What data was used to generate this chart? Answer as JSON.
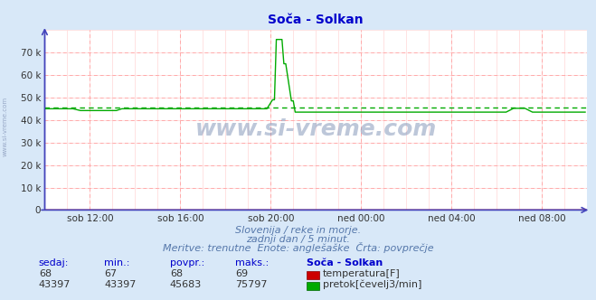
{
  "title": "Soča - Solkan",
  "bg_color": "#d8e8f8",
  "plot_bg_color": "#ffffff",
  "grid_color_major": "#ffaaaa",
  "grid_color_minor": "#ffdddd",
  "xlim": [
    0,
    288
  ],
  "ylim": [
    0,
    80000
  ],
  "ytick_positions": [
    0,
    10000,
    20000,
    30000,
    40000,
    50000,
    60000,
    70000
  ],
  "ytick_labels": [
    "0",
    "10 k",
    "20 k",
    "30 k",
    "40 k",
    "50 k",
    "60 k",
    "70 k"
  ],
  "xtick_positions": [
    24,
    72,
    120,
    168,
    216,
    264
  ],
  "xtick_labels": [
    "sob 12:00",
    "sob 16:00",
    "sob 20:00",
    "ned 00:00",
    "ned 04:00",
    "ned 08:00"
  ],
  "flow_color": "#00aa00",
  "temp_color": "#cc0000",
  "avg_flow": 45683,
  "watermark_text": "www.si-vreme.com",
  "left_text": "www.si-vreme.com",
  "subtitle1": "Slovenija / reke in morje.",
  "subtitle2": "zadnji dan / 5 minut.",
  "subtitle3": "Meritve: trenutne  Enote: anglešaške  Črta: povprečje",
  "table_headers": [
    "sedaj:",
    "min.:",
    "povpr.:",
    "maks.:",
    "Soča - Solkan"
  ],
  "table_row1": [
    "68",
    "67",
    "68",
    "69"
  ],
  "table_row2": [
    "43397",
    "43397",
    "45683",
    "75797"
  ],
  "row1_label": "temperatura[F]",
  "row2_label": "pretok[čevelj3/min]",
  "axis_color": "#4444bb",
  "text_color_blue": "#5577aa",
  "table_header_color": "#0000cc",
  "table_value_color": "#333333"
}
